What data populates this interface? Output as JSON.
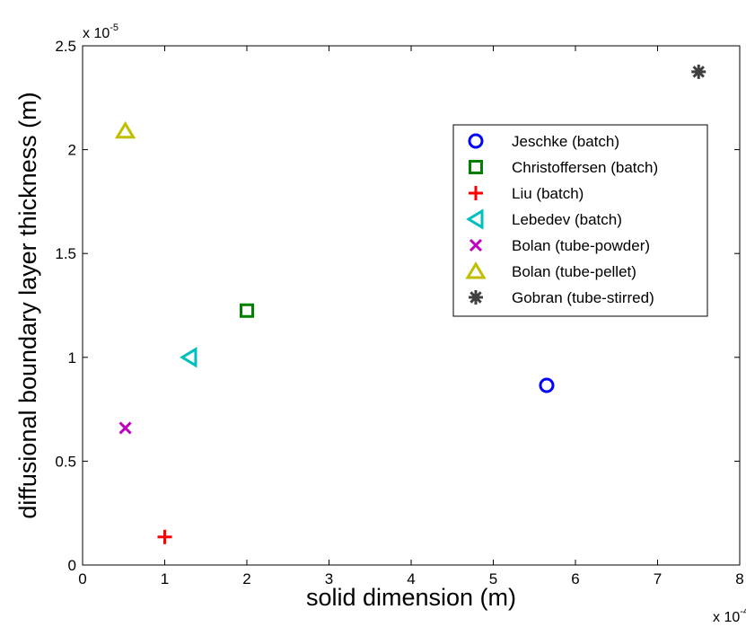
{
  "chart_data": {
    "type": "scatter",
    "xlabel": "solid dimension  (m)",
    "ylabel": "diffusional boundary layer thickness (m)",
    "x_multiplier": {
      "base": "x 10",
      "exponent": "-4"
    },
    "y_multiplier": {
      "base": "x 10",
      "exponent": "-5"
    },
    "xlim": [
      0,
      8
    ],
    "ylim": [
      0,
      2.5
    ],
    "x_ticks": [
      "0",
      "1",
      "2",
      "3",
      "4",
      "5",
      "6",
      "7",
      "8"
    ],
    "y_ticks": [
      "0",
      "0.5",
      "1",
      "1.5",
      "2",
      "2.5"
    ],
    "grid": false,
    "legend_position": "top-right",
    "series": [
      {
        "name": "Jeschke (batch)",
        "marker": "circle",
        "color": "#0000ff",
        "points": [
          {
            "x": 5.65,
            "y": 0.865
          }
        ]
      },
      {
        "name": "Christoffersen (batch)",
        "marker": "square",
        "color": "#008000",
        "points": [
          {
            "x": 2.0,
            "y": 1.225
          }
        ]
      },
      {
        "name": "Liu (batch)",
        "marker": "plus",
        "color": "#ff0000",
        "points": [
          {
            "x": 1.0,
            "y": 0.135
          }
        ]
      },
      {
        "name": "Lebedev (batch)",
        "marker": "triangle-left",
        "color": "#00bfbf",
        "points": [
          {
            "x": 1.3,
            "y": 1.0
          }
        ]
      },
      {
        "name": "Bolan (tube-powder)",
        "marker": "x",
        "color": "#bf00bf",
        "points": [
          {
            "x": 0.52,
            "y": 0.66
          }
        ]
      },
      {
        "name": "Bolan (tube-pellet)",
        "marker": "triangle-up",
        "color": "#bfbf00",
        "points": [
          {
            "x": 0.52,
            "y": 2.09
          }
        ]
      },
      {
        "name": "Gobran (tube-stirred)",
        "marker": "asterisk",
        "color": "#404040",
        "points": [
          {
            "x": 7.5,
            "y": 2.375
          }
        ]
      }
    ]
  }
}
